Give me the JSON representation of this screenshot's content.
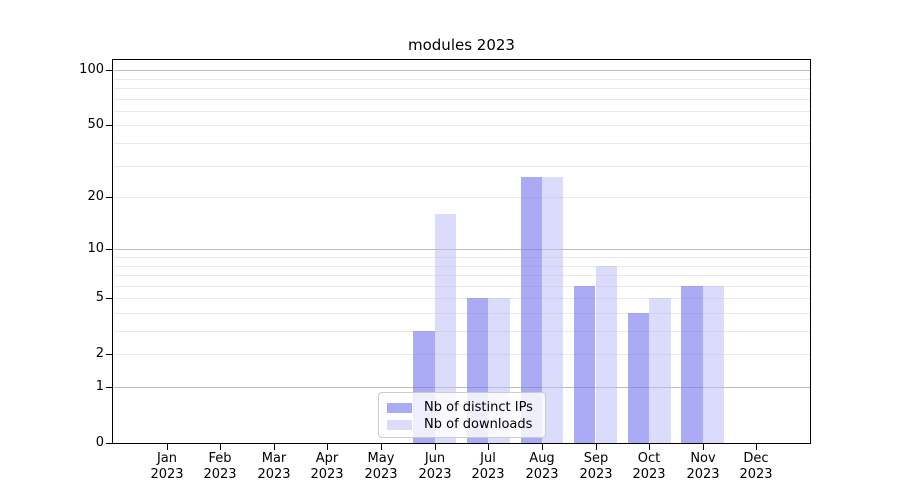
{
  "title": "modules 2023",
  "colors": {
    "bar_distinct_ips": "rgba(124,124,240,0.65)",
    "bar_downloads": "rgba(184,184,247,0.5)",
    "grid_minor": "#e9e9e9",
    "grid_major": "#bdbdbd",
    "spine": "#000000",
    "legend_border": "#cccccc",
    "legend_background": "rgba(255,255,255,0.8)"
  },
  "chart_data": {
    "type": "bar",
    "title": "modules 2023",
    "categories": [
      "Jan 2023",
      "Feb 2023",
      "Mar 2023",
      "Apr 2023",
      "May 2023",
      "Jun 2023",
      "Jul 2023",
      "Aug 2023",
      "Sep 2023",
      "Oct 2023",
      "Nov 2023",
      "Dec 2023"
    ],
    "month_labels": [
      "Jan",
      "Feb",
      "Mar",
      "Apr",
      "May",
      "Jun",
      "Jul",
      "Aug",
      "Sep",
      "Oct",
      "Nov",
      "Dec"
    ],
    "year_label": "2023",
    "series": [
      {
        "name": "Nb of distinct IPs",
        "color": "rgba(124,124,240,0.65)",
        "values": [
          0,
          0,
          0,
          0,
          0,
          3,
          5,
          26,
          6,
          4,
          6,
          0
        ]
      },
      {
        "name": "Nb of downloads",
        "color": "rgba(184,184,247,0.5)",
        "values": [
          0,
          0,
          0,
          0,
          0,
          16,
          5,
          26,
          8,
          5,
          6,
          0
        ]
      }
    ],
    "yscale": "log1p",
    "ylim": [
      0,
      113
    ],
    "y_ticks": [
      0,
      1,
      2,
      5,
      10,
      20,
      50,
      100
    ],
    "y_tick_labels": [
      "0",
      "1",
      "2",
      "5",
      "10",
      "20",
      "50",
      "100"
    ],
    "y_major_gridlines": [
      1,
      10,
      100
    ],
    "y_minor_gridlines": [
      2,
      3,
      4,
      5,
      6,
      7,
      8,
      9,
      20,
      30,
      40,
      50,
      60,
      70,
      80,
      90
    ],
    "grid": true,
    "legend_position": "inside-bottom-center",
    "xlabel": "",
    "ylabel": ""
  }
}
